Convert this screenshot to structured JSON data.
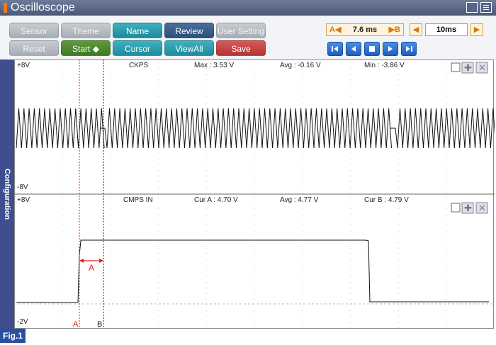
{
  "window": {
    "title": "Oscilloscope"
  },
  "toolbar": {
    "row1": {
      "sensor": "Sensor",
      "theme": "Theme",
      "name": "Name",
      "review": "Review",
      "user_setting": "User Setting"
    },
    "row2": {
      "reset": "Reset",
      "start": "Start ◆",
      "cursor": "Cursor",
      "viewall": "ViewAll",
      "save": "Save"
    },
    "cursor_delta": {
      "label": "A◀",
      "value": "7.6 ms",
      "b_label": "▶B"
    },
    "timebase": {
      "value": "10ms"
    }
  },
  "sidebar": {
    "label": "Configuration"
  },
  "channel1": {
    "top_scale": "+8V",
    "bottom_scale": "-8V",
    "name": "CKPS",
    "max": "Max : 3.53 V",
    "avg": "Avg : -0.16 V",
    "min": "Min : -3.86 V"
  },
  "channel2": {
    "top_scale": "+8V",
    "bottom_scale": "-2V",
    "name": "CMPS IN",
    "cur_a": "Cur A : 4.70 V",
    "avg": "Avg : 4.77 V",
    "cur_b": "Cur B : 4.79 V",
    "delta_label": "A"
  },
  "cursors": {
    "a": "A",
    "b": "B"
  },
  "figure": {
    "label": "Fig.1"
  },
  "colors": {
    "titlebar": "#4a5878",
    "sidebar": "#3e4e8e",
    "cursor_a": "#e02020",
    "cursor_b": "#222222",
    "teal": "#1d8b9b",
    "navy": "#2e4f7c",
    "green": "#3f7a23",
    "red": "#b43434",
    "blue": "#1d5fc0"
  }
}
